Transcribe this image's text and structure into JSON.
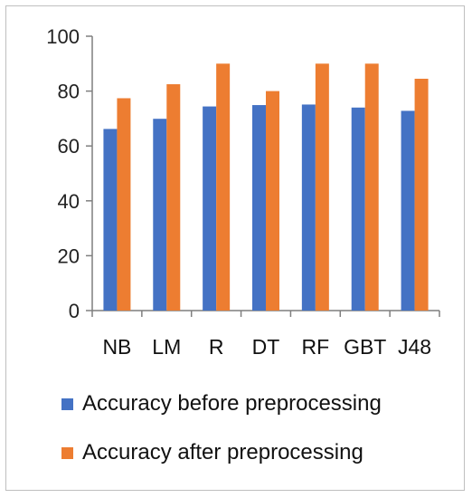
{
  "chart_data": {
    "type": "bar",
    "categories": [
      "NB",
      "LM",
      "R",
      "DT",
      "RF",
      "GBT",
      "J48"
    ],
    "series": [
      {
        "name": "Accuracy before preprocessing",
        "color": "#4472c4",
        "values": [
          66.2,
          69.9,
          74.4,
          74.9,
          75.1,
          74.0,
          72.8
        ]
      },
      {
        "name": "Accuracy after preprocessing",
        "color": "#ed7d31",
        "values": [
          77.4,
          82.5,
          90.0,
          80.0,
          90.0,
          90.0,
          84.5
        ]
      }
    ],
    "y_ticks": [
      "0",
      "20",
      "40",
      "60",
      "80",
      "100"
    ],
    "ylim": [
      0,
      100
    ],
    "grid": false,
    "legend_position": "bottom",
    "title": "",
    "xlabel": "",
    "ylabel": ""
  }
}
